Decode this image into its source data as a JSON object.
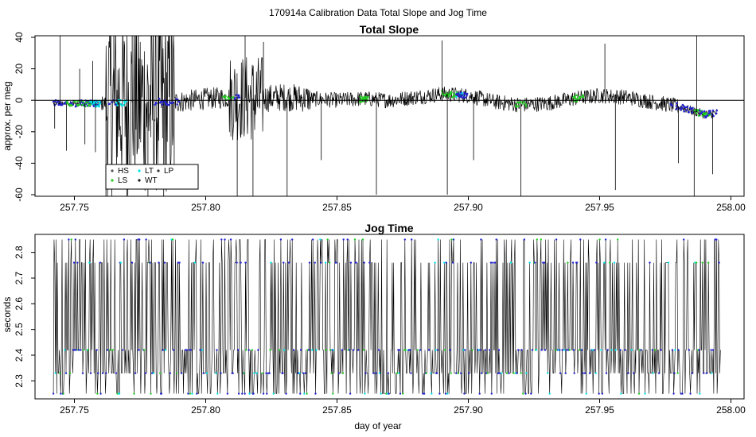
{
  "figure_title": "170914a   Calibration Data Total Slope and Jog Time",
  "chart_data": [
    {
      "type": "line",
      "title": "Total Slope",
      "xlabel": "",
      "ylabel": "approx. per meg",
      "xlim": [
        257.735,
        258.005
      ],
      "ylim": [
        -61,
        41
      ],
      "xticks": [
        257.75,
        257.8,
        257.85,
        257.9,
        257.95,
        258.0
      ],
      "xtick_labels": [
        "257.75",
        "257.80",
        "257.85",
        "257.90",
        "257.95",
        "258.00"
      ],
      "yticks": [
        -60,
        -40,
        -20,
        0,
        20,
        40
      ],
      "ytick_labels": [
        "-60",
        "-40",
        "-20",
        "0",
        "20",
        "40"
      ],
      "reference_line_y": 0,
      "grid": false,
      "legend_position": "bottom-left",
      "legend": [
        {
          "label": "HS",
          "color": "#555555"
        },
        {
          "label": "LT",
          "color": "#00e5e5"
        },
        {
          "label": "LP",
          "color": "#333333"
        },
        {
          "label": "LS",
          "color": "#22cc22"
        },
        {
          "label": "WT",
          "color": "#111111"
        }
      ],
      "baseline_trend": [
        {
          "x": 257.742,
          "y": -2
        },
        {
          "x": 257.76,
          "y": -2
        },
        {
          "x": 257.78,
          "y": -1
        },
        {
          "x": 257.79,
          "y": -1
        },
        {
          "x": 257.8,
          "y": 1
        },
        {
          "x": 257.81,
          "y": 2
        },
        {
          "x": 257.82,
          "y": 1
        },
        {
          "x": 257.83,
          "y": 2
        },
        {
          "x": 257.84,
          "y": 1
        },
        {
          "x": 257.85,
          "y": 0
        },
        {
          "x": 257.86,
          "y": 1
        },
        {
          "x": 257.87,
          "y": 0
        },
        {
          "x": 257.88,
          "y": 2
        },
        {
          "x": 257.89,
          "y": 4
        },
        {
          "x": 257.9,
          "y": 3
        },
        {
          "x": 257.91,
          "y": -1
        },
        {
          "x": 257.92,
          "y": -3
        },
        {
          "x": 257.93,
          "y": -2
        },
        {
          "x": 257.94,
          "y": 1
        },
        {
          "x": 257.95,
          "y": 3
        },
        {
          "x": 257.96,
          "y": 2
        },
        {
          "x": 257.97,
          "y": -1
        },
        {
          "x": 257.98,
          "y": -4
        },
        {
          "x": 257.99,
          "y": -9
        },
        {
          "x": 257.995,
          "y": -8
        }
      ],
      "outlier_spikes": [
        {
          "x": 257.7425,
          "y": -18
        },
        {
          "x": 257.7445,
          "y": 42
        },
        {
          "x": 257.747,
          "y": -32
        },
        {
          "x": 257.752,
          "y": 20
        },
        {
          "x": 257.754,
          "y": -28
        },
        {
          "x": 257.757,
          "y": 25
        },
        {
          "x": 257.758,
          "y": -33
        },
        {
          "x": 257.762,
          "y": -61
        },
        {
          "x": 257.765,
          "y": 42
        },
        {
          "x": 257.77,
          "y": -61
        },
        {
          "x": 257.772,
          "y": 42
        },
        {
          "x": 257.778,
          "y": -61
        },
        {
          "x": 257.78,
          "y": 42
        },
        {
          "x": 257.784,
          "y": -61
        },
        {
          "x": 257.788,
          "y": -45
        },
        {
          "x": 257.812,
          "y": -61
        },
        {
          "x": 257.815,
          "y": 42
        },
        {
          "x": 257.818,
          "y": -61
        },
        {
          "x": 257.822,
          "y": 37
        },
        {
          "x": 257.831,
          "y": -61
        },
        {
          "x": 257.844,
          "y": -38
        },
        {
          "x": 257.865,
          "y": -60
        },
        {
          "x": 257.89,
          "y": 38
        },
        {
          "x": 257.892,
          "y": -60
        },
        {
          "x": 257.902,
          "y": -38
        },
        {
          "x": 257.92,
          "y": -61
        },
        {
          "x": 257.952,
          "y": 36
        },
        {
          "x": 257.956,
          "y": -57
        },
        {
          "x": 257.98,
          "y": -40
        },
        {
          "x": 257.986,
          "y": -61
        },
        {
          "x": 257.987,
          "y": 42
        },
        {
          "x": 257.993,
          "y": -47
        }
      ]
    },
    {
      "type": "line",
      "title": "Jog Time",
      "xlabel": "day of year",
      "ylabel": "seconds",
      "xlim": [
        257.735,
        258.005
      ],
      "ylim": [
        2.23,
        2.87
      ],
      "xticks": [
        257.75,
        257.8,
        257.85,
        257.9,
        257.95,
        258.0
      ],
      "xtick_labels": [
        "257.75",
        "257.80",
        "257.85",
        "257.90",
        "257.95",
        "258.00"
      ],
      "yticks": [
        2.3,
        2.4,
        2.5,
        2.6,
        2.7,
        2.8
      ],
      "ytick_labels": [
        "2.3",
        "2.4",
        "2.5",
        "2.6",
        "2.7",
        "2.8"
      ],
      "grid": false,
      "levels": [
        2.25,
        2.33,
        2.42,
        2.76,
        2.85
      ],
      "x_range": [
        257.742,
        257.996
      ]
    }
  ]
}
